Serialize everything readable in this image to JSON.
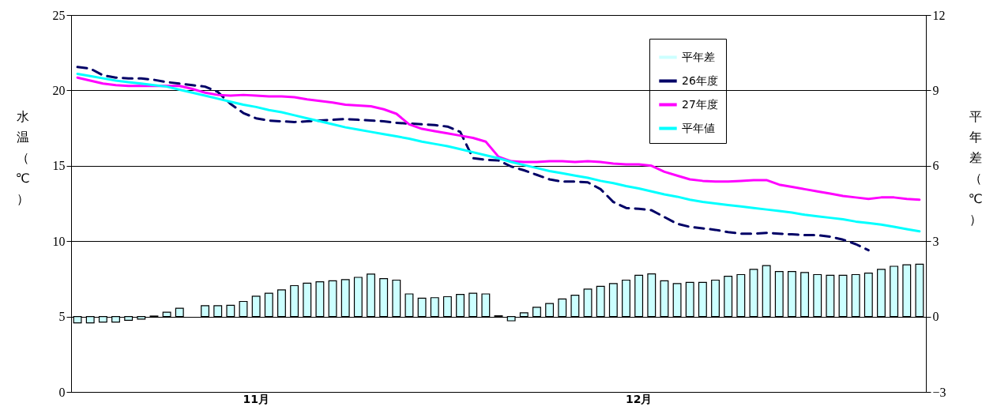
{
  "chart_data": {
    "type": "line",
    "ylabel": "水温（℃）",
    "y2label": "平年差（℃）",
    "categories": [
      null,
      null,
      null,
      null,
      null,
      null,
      null,
      null,
      null,
      null,
      null,
      null,
      null,
      null,
      "11月",
      null,
      null,
      null,
      null,
      null,
      null,
      null,
      null,
      null,
      null,
      null,
      null,
      null,
      null,
      null,
      null,
      null,
      null,
      null,
      null,
      null,
      null,
      null,
      null,
      null,
      null,
      null,
      null,
      null,
      "12月",
      null,
      null,
      null,
      null,
      null,
      null,
      null,
      null,
      null,
      null,
      null,
      null,
      null,
      null,
      null,
      null,
      null,
      null,
      null,
      null,
      null,
      null
    ],
    "ylim": [
      0,
      25
    ],
    "yticks": [
      0,
      5,
      10,
      15,
      20,
      25
    ],
    "y2lim": [
      -3,
      12
    ],
    "y2ticks": [
      -3,
      0,
      3,
      6,
      9,
      12
    ],
    "grid": "y",
    "legend": "top right",
    "series": [
      {
        "name": "平年差",
        "type": "bar",
        "axis": "y2",
        "color": "#ccffff",
        "values": [
          -0.25,
          -0.25,
          -0.22,
          -0.22,
          -0.15,
          -0.1,
          0.02,
          0.17,
          0.33,
          null,
          0.43,
          0.43,
          0.45,
          0.6,
          0.81,
          0.93,
          1.06,
          1.23,
          1.33,
          1.38,
          1.42,
          1.47,
          1.56,
          1.69,
          1.51,
          1.45,
          0.9,
          0.73,
          0.75,
          0.79,
          0.88,
          0.93,
          0.9,
          0.03,
          -0.17,
          0.15,
          0.37,
          0.52,
          0.7,
          0.85,
          1.09,
          1.2,
          1.31,
          1.45,
          1.64,
          1.7,
          1.42,
          1.31,
          1.36,
          1.36,
          1.45,
          1.6,
          1.67,
          1.88,
          2.03,
          1.79,
          1.79,
          1.75,
          1.67,
          1.64,
          1.64,
          1.67,
          1.73,
          1.88,
          2.0,
          2.06,
          2.08
        ]
      },
      {
        "name": "26年度",
        "line_style": "dashed",
        "color": "#000066",
        "values": [
          21.55,
          21.45,
          21.0,
          20.85,
          20.8,
          20.8,
          20.7,
          20.55,
          20.45,
          20.35,
          20.25,
          19.9,
          19.1,
          18.5,
          18.15,
          18.0,
          17.95,
          17.9,
          17.95,
          18.0,
          18.05,
          18.1,
          18.05,
          18.0,
          17.95,
          17.85,
          17.8,
          17.75,
          17.7,
          17.6,
          17.25,
          15.5,
          15.4,
          15.35,
          14.95,
          14.7,
          14.4,
          14.1,
          13.95,
          13.95,
          13.9,
          13.45,
          12.6,
          12.2,
          12.15,
          12.05,
          11.6,
          11.15,
          10.95,
          10.85,
          10.75,
          10.6,
          10.5,
          10.5,
          10.55,
          10.5,
          10.45,
          10.4,
          10.4,
          10.3,
          10.1,
          9.8,
          9.4,
          null,
          null,
          null,
          null
        ]
      },
      {
        "name": "27年度",
        "line_style": "solid",
        "color": "#ff00ff",
        "values": [
          20.85,
          20.65,
          20.45,
          20.35,
          20.3,
          20.3,
          20.3,
          20.3,
          20.3,
          20.1,
          19.85,
          19.7,
          19.65,
          19.7,
          19.65,
          19.6,
          19.6,
          19.55,
          19.4,
          19.3,
          19.2,
          19.05,
          19.0,
          18.95,
          18.75,
          18.45,
          17.75,
          17.45,
          17.3,
          17.15,
          17.0,
          16.85,
          16.6,
          15.6,
          15.3,
          15.25,
          15.25,
          15.3,
          15.3,
          15.25,
          15.3,
          15.25,
          15.15,
          15.1,
          15.1,
          15.0,
          14.6,
          14.35,
          14.1,
          14.0,
          13.95,
          13.95,
          14.0,
          14.05,
          14.05,
          13.75,
          13.6,
          13.45,
          13.3,
          13.15,
          13.0,
          12.9,
          12.8,
          12.9,
          12.9,
          12.8,
          12.75
        ]
      },
      {
        "name": "平年値",
        "line_style": "solid",
        "color": "#00ffff",
        "values": [
          21.1,
          20.95,
          20.8,
          20.65,
          20.55,
          20.45,
          20.35,
          20.25,
          20.05,
          19.85,
          19.65,
          19.45,
          19.25,
          19.05,
          18.9,
          18.7,
          18.55,
          18.35,
          18.15,
          17.95,
          17.75,
          17.55,
          17.4,
          17.25,
          17.1,
          16.95,
          16.8,
          16.6,
          16.45,
          16.3,
          16.1,
          15.9,
          15.7,
          15.5,
          15.25,
          15.05,
          14.85,
          14.65,
          14.5,
          14.35,
          14.2,
          14.0,
          13.85,
          13.65,
          13.5,
          13.3,
          13.1,
          12.95,
          12.75,
          12.6,
          12.5,
          12.4,
          12.3,
          12.2,
          12.1,
          12.0,
          11.9,
          11.75,
          11.65,
          11.55,
          11.45,
          11.3,
          11.2,
          11.1,
          10.95,
          10.8,
          10.65
        ]
      }
    ]
  }
}
